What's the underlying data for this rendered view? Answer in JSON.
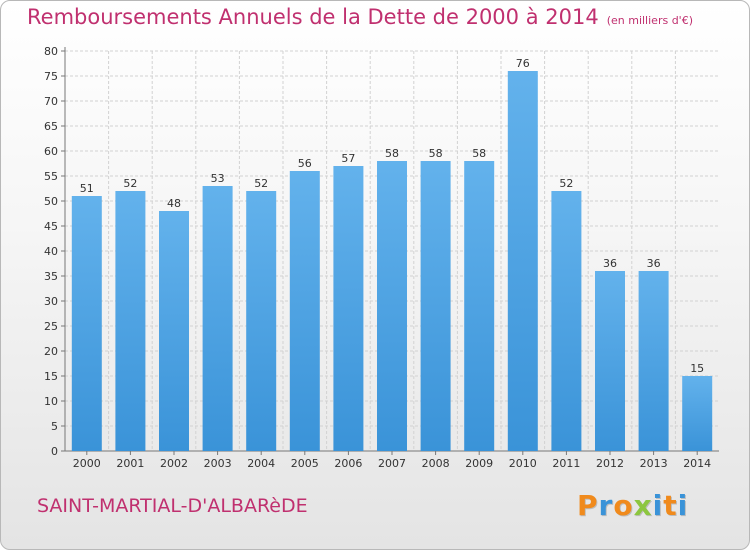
{
  "chart_data": {
    "type": "bar",
    "title": "Remboursements Annuels de la Dette de 2000 à 2014",
    "unit_note": "(en milliers d'€)",
    "categories": [
      "2000",
      "2001",
      "2002",
      "2003",
      "2004",
      "2005",
      "2006",
      "2007",
      "2008",
      "2009",
      "2010",
      "2011",
      "2012",
      "2013",
      "2014"
    ],
    "values": [
      51,
      52,
      48,
      53,
      52,
      56,
      57,
      58,
      58,
      58,
      76,
      52,
      36,
      36,
      15
    ],
    "ylim": [
      0,
      80
    ],
    "yticks": [
      0,
      5,
      10,
      15,
      20,
      25,
      30,
      35,
      40,
      45,
      50,
      55,
      60,
      65,
      70,
      75,
      80
    ],
    "grid": true,
    "bar_color": "#3a93d8",
    "bar_color_light": "#63b2ec"
  },
  "commune": "SAINT-MARTIAL-D'ALBARèDE",
  "brand": {
    "letters": [
      "P",
      "r",
      "o",
      "x",
      "i",
      "t",
      "i"
    ],
    "colors": [
      "#f08a1c",
      "#3a93d8",
      "#f08a1c",
      "#8cc63f",
      "#3a93d8",
      "#f08a1c",
      "#3a93d8"
    ]
  }
}
